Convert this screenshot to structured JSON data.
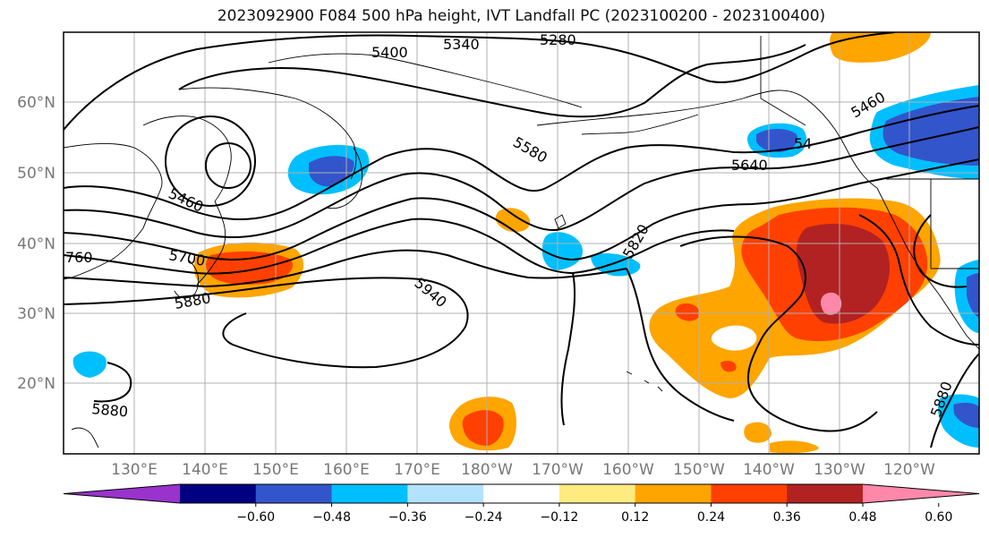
{
  "title": "2023092900 F084 500 hPa height, IVT Landfall PC (2023100200 - 2023100400)",
  "lat_labels": [
    "60°N",
    "50°N",
    "40°N",
    "30°N",
    "20°N"
  ],
  "lon_labels": [
    "130°E",
    "140°E",
    "150°E",
    "160°E",
    "170°E",
    "180°W",
    "170°W",
    "160°W",
    "150°W",
    "140°W",
    "130°W",
    "120°W"
  ],
  "contour_labels": [
    "5400",
    "5340",
    "5280",
    "5460",
    "5580",
    "5640",
    "5460",
    "5700",
    "5880",
    "5940",
    "5820",
    "5880",
    "5880",
    "760",
    "54"
  ],
  "colorbar": {
    "colors": [
      "#9933cc",
      "#000080",
      "#3355cc",
      "#00bfff",
      "#b3e2ff",
      "#ffffff",
      "#ffeb80",
      "#ffa500",
      "#ff4000",
      "#b22222",
      "#ff88aa"
    ],
    "ticks": [
      "−0.60",
      "−0.48",
      "−0.36",
      "−0.24",
      "−0.12",
      "0.12",
      "0.24",
      "0.36",
      "0.48",
      "0.60"
    ]
  }
}
